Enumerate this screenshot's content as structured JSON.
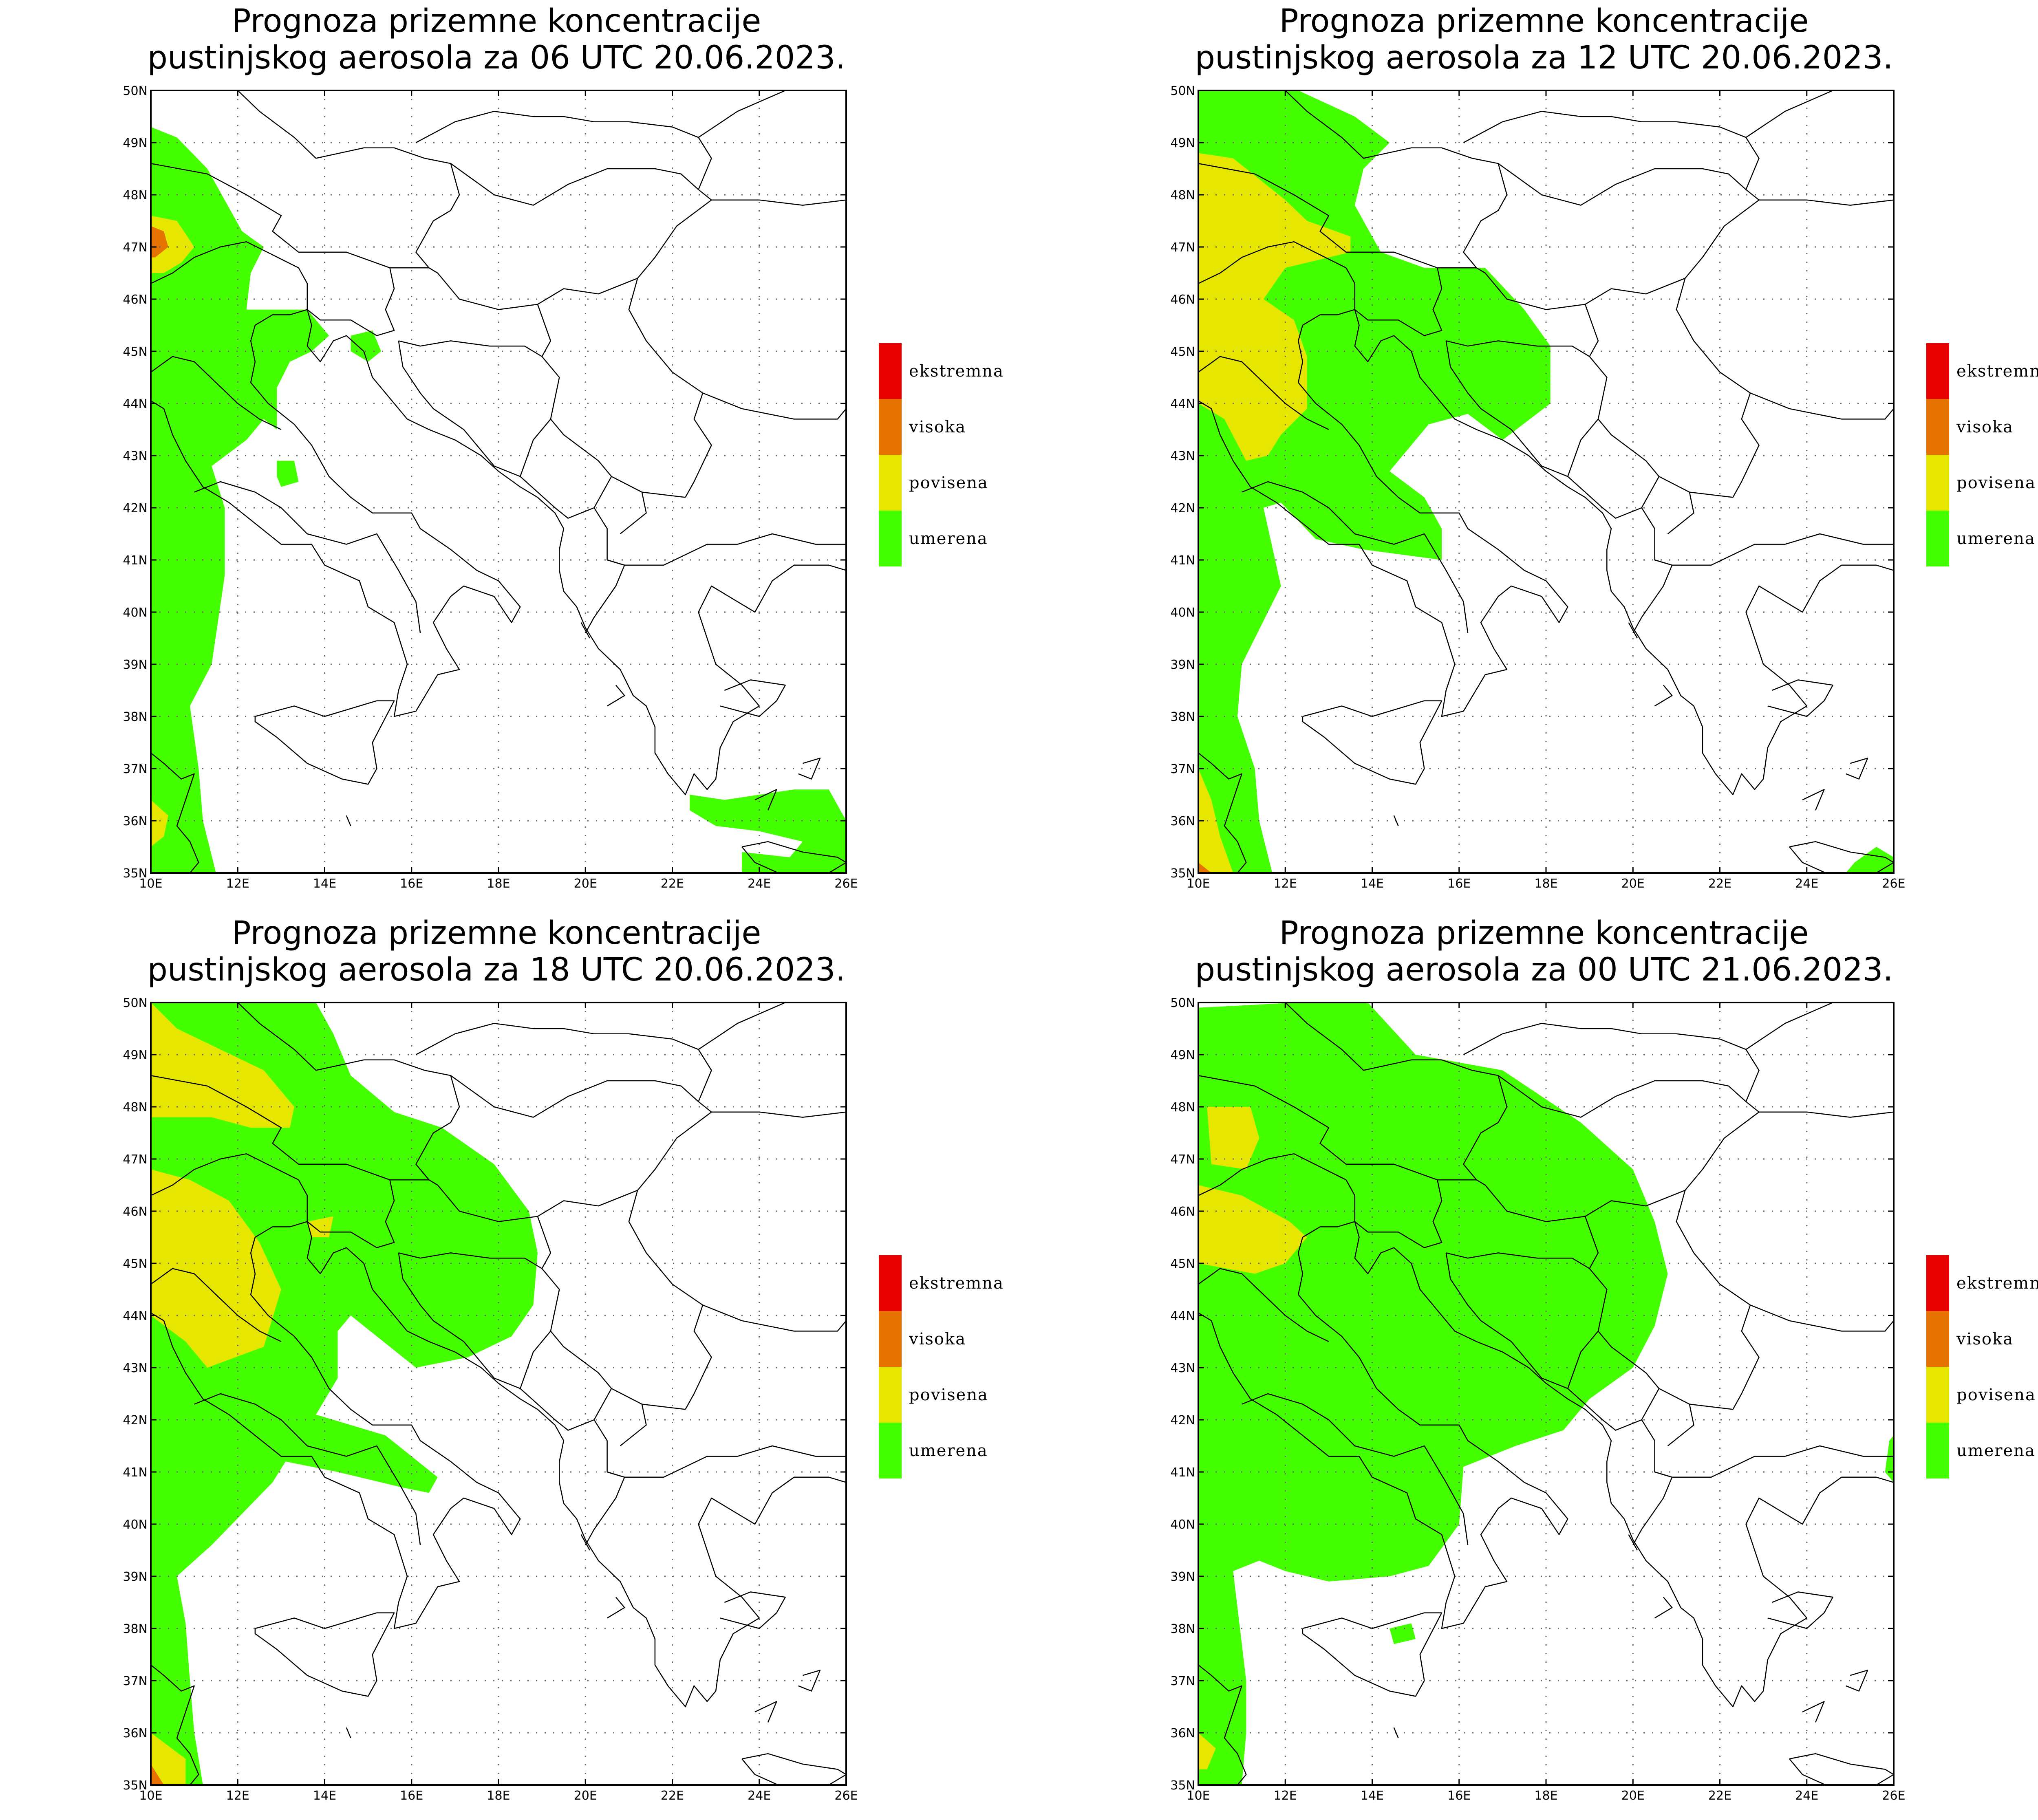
{
  "colors": {
    "umerena": "#44ff00",
    "povisena": "#e6e600",
    "visoka": "#e67300",
    "ekstremna": "#e60000"
  },
  "legend": [
    {
      "label": "ekstremna",
      "color": "#e60000"
    },
    {
      "label": "visoka",
      "color": "#e67300"
    },
    {
      "label": "povisena",
      "color": "#e6e600"
    },
    {
      "label": "umerena",
      "color": "#44ff00"
    }
  ],
  "axes": {
    "lon_labels": [
      "10E",
      "12E",
      "14E",
      "16E",
      "18E",
      "20E",
      "22E",
      "24E",
      "26E"
    ],
    "lat_labels": [
      "50N",
      "49N",
      "48N",
      "47N",
      "46N",
      "45N",
      "44N",
      "43N",
      "42N",
      "41N",
      "40N",
      "39N",
      "38N",
      "37N",
      "36N",
      "35N"
    ]
  },
  "panels": [
    {
      "title_line1": "Prognoza prizemne koncentracije",
      "title_line2": "pustinjskog aerosola za 06 UTC 20.06.2023.",
      "regions": [
        {
          "level": "umerena",
          "lonlat": [
            [
              10,
              49.3
            ],
            [
              10.6,
              49.1
            ],
            [
              11.3,
              48.5
            ],
            [
              12.1,
              47.3
            ],
            [
              12.6,
              47.0
            ],
            [
              12.3,
              46.5
            ],
            [
              12.2,
              45.8
            ],
            [
              13.6,
              45.8
            ],
            [
              14.1,
              45.3
            ],
            [
              13.7,
              45.0
            ],
            [
              13.2,
              44.8
            ],
            [
              12.9,
              44.3
            ],
            [
              12.9,
              43.5
            ],
            [
              12.6,
              43.7
            ],
            [
              12.2,
              43.3
            ],
            [
              11.4,
              42.8
            ],
            [
              11.7,
              42.0
            ],
            [
              11.7,
              40.7
            ],
            [
              11.4,
              39.0
            ],
            [
              10.9,
              38.2
            ],
            [
              11.1,
              37.0
            ],
            [
              11.2,
              36.0
            ],
            [
              11.5,
              35.0
            ],
            [
              10,
              35.0
            ]
          ]
        },
        {
          "level": "umerena",
          "lonlat": [
            [
              14.6,
              45.3
            ],
            [
              15.1,
              45.4
            ],
            [
              15.3,
              45.0
            ],
            [
              15.0,
              44.8
            ],
            [
              14.6,
              45.0
            ]
          ]
        },
        {
          "level": "umerena",
          "lonlat": [
            [
              12.9,
              42.9
            ],
            [
              13.3,
              42.9
            ],
            [
              13.4,
              42.5
            ],
            [
              13.0,
              42.4
            ],
            [
              12.9,
              42.6
            ]
          ]
        },
        {
          "level": "umerena",
          "lonlat": [
            [
              22.4,
              36.5
            ],
            [
              23.2,
              36.4
            ],
            [
              24.8,
              36.6
            ],
            [
              25.6,
              36.6
            ],
            [
              26.0,
              36.0
            ],
            [
              26.0,
              35.0
            ],
            [
              23.6,
              35.0
            ],
            [
              23.6,
              35.4
            ],
            [
              24.7,
              35.3
            ],
            [
              25.0,
              35.6
            ],
            [
              24.0,
              35.8
            ],
            [
              23.0,
              35.9
            ],
            [
              22.4,
              36.2
            ]
          ]
        },
        {
          "level": "povisena",
          "lonlat": [
            [
              10,
              47.6
            ],
            [
              10.6,
              47.5
            ],
            [
              11.0,
              47.0
            ],
            [
              10.7,
              46.7
            ],
            [
              10.3,
              46.5
            ],
            [
              10,
              46.5
            ]
          ]
        },
        {
          "level": "povisena",
          "lonlat": [
            [
              10,
              36.4
            ],
            [
              10.4,
              36.1
            ],
            [
              10.3,
              35.7
            ],
            [
              10,
              35.5
            ]
          ]
        },
        {
          "level": "visoka",
          "lonlat": [
            [
              10,
              47.4
            ],
            [
              10.3,
              47.3
            ],
            [
              10.4,
              47.0
            ],
            [
              10.1,
              46.8
            ],
            [
              10,
              46.8
            ]
          ]
        }
      ]
    },
    {
      "title_line1": "Prognoza prizemne koncentracije",
      "title_line2": "pustinjskog aerosola za 12 UTC 20.06.2023.",
      "regions": [
        {
          "level": "umerena",
          "lonlat": [
            [
              10,
              50
            ],
            [
              12.3,
              50
            ],
            [
              13.6,
              49.5
            ],
            [
              14.4,
              49.0
            ],
            [
              13.8,
              48.5
            ],
            [
              13.6,
              47.8
            ],
            [
              14.2,
              46.9
            ],
            [
              15.2,
              46.6
            ],
            [
              16.6,
              46.6
            ],
            [
              17.5,
              45.8
            ],
            [
              18.1,
              45.1
            ],
            [
              18.1,
              44.0
            ],
            [
              17.0,
              43.3
            ],
            [
              16.2,
              43.8
            ],
            [
              15.3,
              43.6
            ],
            [
              14.4,
              42.7
            ],
            [
              15.2,
              42.2
            ],
            [
              15.6,
              41.6
            ],
            [
              15.6,
              41.0
            ],
            [
              14.7,
              41.1
            ],
            [
              13.8,
              41.2
            ],
            [
              12.7,
              41.4
            ],
            [
              11.9,
              42.1
            ],
            [
              11.5,
              42.0
            ],
            [
              11.9,
              40.5
            ],
            [
              11.0,
              39.0
            ],
            [
              10.9,
              38.0
            ],
            [
              11.3,
              37.0
            ],
            [
              11.4,
              36.0
            ],
            [
              11.7,
              35.0
            ],
            [
              10,
              35
            ]
          ]
        },
        {
          "level": "umerena",
          "lonlat": [
            [
              25.1,
              35.2
            ],
            [
              25.6,
              35.5
            ],
            [
              26.0,
              35.3
            ],
            [
              26.0,
              35.0
            ],
            [
              24.9,
              35.0
            ]
          ]
        },
        {
          "level": "povisena",
          "lonlat": [
            [
              10,
              48.8
            ],
            [
              10.8,
              48.7
            ],
            [
              12.0,
              47.9
            ],
            [
              12.5,
              47.5
            ],
            [
              13.5,
              47.2
            ],
            [
              13.5,
              46.9
            ],
            [
              12.0,
              46.6
            ],
            [
              11.5,
              46.0
            ],
            [
              12.2,
              45.6
            ],
            [
              12.5,
              44.9
            ],
            [
              12.5,
              43.9
            ],
            [
              11.9,
              43.4
            ],
            [
              11.6,
              43.0
            ],
            [
              11.1,
              42.9
            ],
            [
              10.6,
              43.7
            ],
            [
              10,
              44.0
            ]
          ]
        },
        {
          "level": "povisena",
          "lonlat": [
            [
              10,
              37.0
            ],
            [
              10.3,
              36.4
            ],
            [
              10.5,
              35.7
            ],
            [
              10.8,
              35.0
            ],
            [
              10,
              35
            ]
          ]
        },
        {
          "level": "visoka",
          "lonlat": [
            [
              10,
              35.2
            ],
            [
              10.3,
              35.0
            ],
            [
              10,
              35.0
            ]
          ]
        }
      ]
    },
    {
      "title_line1": "Prognoza prizemne koncentracije",
      "title_line2": "pustinjskog aerosola za 18 UTC 20.06.2023.",
      "regions": [
        {
          "level": "umerena",
          "lonlat": [
            [
              10,
              50
            ],
            [
              13.8,
              50
            ],
            [
              14.2,
              49.4
            ],
            [
              14.6,
              48.6
            ],
            [
              15.6,
              47.9
            ],
            [
              16.7,
              47.6
            ],
            [
              17.9,
              46.9
            ],
            [
              18.7,
              46.0
            ],
            [
              18.9,
              45.2
            ],
            [
              18.8,
              44.2
            ],
            [
              18.3,
              43.6
            ],
            [
              17.3,
              43.2
            ],
            [
              16.1,
              43.0
            ],
            [
              14.6,
              44.0
            ],
            [
              14.3,
              43.7
            ],
            [
              14.3,
              42.8
            ],
            [
              13.8,
              42.1
            ],
            [
              15.4,
              41.7
            ],
            [
              16.6,
              40.9
            ],
            [
              16.4,
              40.6
            ],
            [
              15.8,
              40.7
            ],
            [
              14.3,
              41.0
            ],
            [
              13.1,
              41.2
            ],
            [
              12.8,
              40.8
            ],
            [
              11.4,
              39.6
            ],
            [
              10.6,
              39.0
            ],
            [
              10.8,
              38.1
            ],
            [
              10.9,
              37.0
            ],
            [
              11.0,
              36.0
            ],
            [
              11.2,
              35.0
            ],
            [
              10,
              35
            ]
          ]
        },
        {
          "level": "povisena",
          "lonlat": [
            [
              10,
              50
            ],
            [
              10.6,
              49.5
            ],
            [
              11.6,
              49.1
            ],
            [
              12.6,
              48.7
            ],
            [
              13.3,
              48.0
            ],
            [
              13.2,
              47.6
            ],
            [
              12.3,
              47.6
            ],
            [
              11.4,
              47.8
            ],
            [
              10,
              47.8
            ]
          ]
        },
        {
          "level": "povisena",
          "lonlat": [
            [
              10,
              46.8
            ],
            [
              10.9,
              46.6
            ],
            [
              11.8,
              46.2
            ],
            [
              12.5,
              45.4
            ],
            [
              13.0,
              44.5
            ],
            [
              12.6,
              43.4
            ],
            [
              11.3,
              43.0
            ],
            [
              10.8,
              43.5
            ],
            [
              10,
              44.0
            ]
          ]
        },
        {
          "level": "povisena",
          "lonlat": [
            [
              13.6,
              45.8
            ],
            [
              14.2,
              45.9
            ],
            [
              14.1,
              45.5
            ],
            [
              13.7,
              45.5
            ]
          ]
        },
        {
          "level": "povisena",
          "lonlat": [
            [
              10,
              36.0
            ],
            [
              10.8,
              35.5
            ],
            [
              10.8,
              35.0
            ],
            [
              10,
              35
            ]
          ]
        },
        {
          "level": "visoka",
          "lonlat": [
            [
              10,
              35.4
            ],
            [
              10.3,
              35.0
            ],
            [
              10,
              35.0
            ]
          ]
        }
      ]
    },
    {
      "title_line1": "Prognoza prizemne koncentracije",
      "title_line2": "pustinjskog aerosola za 00 UTC 21.06.2023.",
      "regions": [
        {
          "level": "umerena",
          "lonlat": [
            [
              10,
              49.9
            ],
            [
              12.3,
              50
            ],
            [
              13.9,
              50
            ],
            [
              15.0,
              49.0
            ],
            [
              17.0,
              48.7
            ],
            [
              18.8,
              47.7
            ],
            [
              20.0,
              46.8
            ],
            [
              20.5,
              45.8
            ],
            [
              20.8,
              44.8
            ],
            [
              20.5,
              43.8
            ],
            [
              20.0,
              43.0
            ],
            [
              19.0,
              42.4
            ],
            [
              18.4,
              41.8
            ],
            [
              17.3,
              41.5
            ],
            [
              16.1,
              41.1
            ],
            [
              16.0,
              40.0
            ],
            [
              15.3,
              39.2
            ],
            [
              14.4,
              39.0
            ],
            [
              13.0,
              38.9
            ],
            [
              12.0,
              39.1
            ],
            [
              11.4,
              39.3
            ],
            [
              10.8,
              39.1
            ],
            [
              10.9,
              38.4
            ],
            [
              11.1,
              37.0
            ],
            [
              11.1,
              36.0
            ],
            [
              11.0,
              35.0
            ],
            [
              10,
              35
            ]
          ]
        },
        {
          "level": "umerena",
          "lonlat": [
            [
              14.4,
              38.0
            ],
            [
              14.9,
              38.1
            ],
            [
              15.0,
              37.8
            ],
            [
              14.5,
              37.7
            ]
          ]
        },
        {
          "level": "umerena",
          "lonlat": [
            [
              25.9,
              41.6
            ],
            [
              26.0,
              41.7
            ],
            [
              26.0,
              40.8
            ],
            [
              25.8,
              41.0
            ]
          ]
        },
        {
          "level": "povisena",
          "lonlat": [
            [
              10.2,
              48.0
            ],
            [
              11.2,
              48.0
            ],
            [
              11.4,
              47.4
            ],
            [
              11.1,
              46.8
            ],
            [
              10.3,
              46.9
            ]
          ]
        },
        {
          "level": "povisena",
          "lonlat": [
            [
              10,
              46.5
            ],
            [
              11.0,
              46.3
            ],
            [
              12.1,
              45.8
            ],
            [
              12.5,
              45.5
            ],
            [
              12.0,
              45.0
            ],
            [
              11.3,
              44.8
            ],
            [
              10,
              45.0
            ]
          ]
        },
        {
          "level": "povisena",
          "lonlat": [
            [
              10,
              36.0
            ],
            [
              10.4,
              35.7
            ],
            [
              10.2,
              35.3
            ],
            [
              10,
              35.3
            ]
          ]
        }
      ]
    }
  ]
}
